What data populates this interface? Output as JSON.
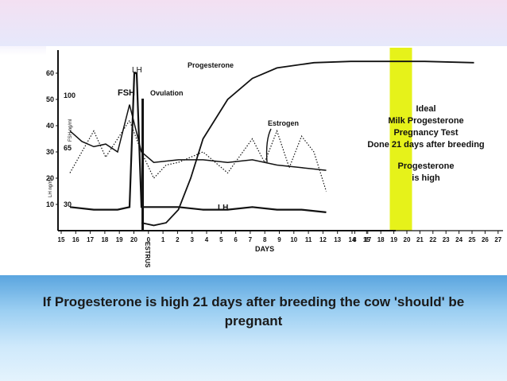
{
  "slide": {
    "caption": "If Progesterone is high 21 days after breeding the cow 'should' be pregnant"
  },
  "colors": {
    "highlight": "#e6f21a",
    "curve": "#111111",
    "band_top": "#5aa5df",
    "band_bottom": "#e4f3fd"
  },
  "chart_data": {
    "type": "line",
    "xlabel": "DAYS",
    "x_ticks": [
      "15",
      "16",
      "17",
      "18",
      "19",
      "20",
      "0",
      "1",
      "2",
      "3",
      "4",
      "5",
      "6",
      "7",
      "8",
      "9",
      "10",
      "11",
      "12",
      "13",
      "14",
      "15",
      "",
      "8",
      "17",
      "18",
      "19",
      "20",
      "21",
      "22",
      "23",
      "24",
      "25",
      "26",
      "27"
    ],
    "y_ticks_left": [
      "10",
      "20",
      "30",
      "40",
      "50",
      "60"
    ],
    "y_ticks_fsh": [
      "10",
      "65",
      "100"
    ],
    "fsh_tick_30": "30",
    "ylabel_lh": "LH ng/ml",
    "ylabel_fsh": "FSH ng/ml",
    "series": [
      {
        "name": "Progesterone",
        "x": [
          0,
          1,
          2,
          3,
          4,
          5,
          7,
          9,
          11,
          14,
          17,
          20,
          23,
          27
        ],
        "y": [
          3,
          2,
          3,
          8,
          20,
          35,
          50,
          58,
          62,
          64,
          64.5,
          64.5,
          64.5,
          64
        ]
      },
      {
        "name": "Estrogen",
        "x": [
          -6,
          -5,
          -4,
          -3,
          -2,
          -1,
          0,
          1,
          2,
          3,
          5,
          7,
          9,
          10,
          11,
          12,
          13,
          14,
          15
        ],
        "y": [
          22,
          30,
          38,
          28,
          35,
          42,
          30,
          20,
          25,
          26,
          30,
          22,
          35,
          26,
          38,
          24,
          36,
          30,
          15
        ]
      },
      {
        "name": "LH",
        "x": [
          -6,
          -4,
          -2,
          -1,
          -0.6,
          -0.4,
          0,
          1,
          3,
          5,
          7,
          9,
          11,
          13,
          15
        ],
        "y": [
          9,
          8,
          8,
          9,
          60,
          60,
          9,
          9,
          9,
          8,
          8,
          9,
          8,
          8,
          7
        ]
      },
      {
        "name": "FSH",
        "x": [
          -6,
          -5,
          -4,
          -3,
          -2,
          -1,
          0,
          1,
          3,
          5,
          7,
          9,
          11,
          13,
          15
        ],
        "y": [
          38,
          34,
          32,
          33,
          30,
          48,
          30,
          26,
          27,
          27,
          26,
          27,
          25,
          24,
          23
        ]
      }
    ],
    "annotations": {
      "lh_peak": "LH",
      "fsh_peak": "FSH",
      "ovulation": "Ovulation",
      "estrus": "ESTRUS",
      "lh_low": "LH",
      "box_line1": "Ideal",
      "box_line2": "Milk Progesterone",
      "box_line3": "Pregnancy Test",
      "box_line4": "Done 21 days after breeding",
      "box_line5": "Progesterone",
      "box_line6": "is high"
    },
    "highlight_day": 21,
    "grid": false
  }
}
